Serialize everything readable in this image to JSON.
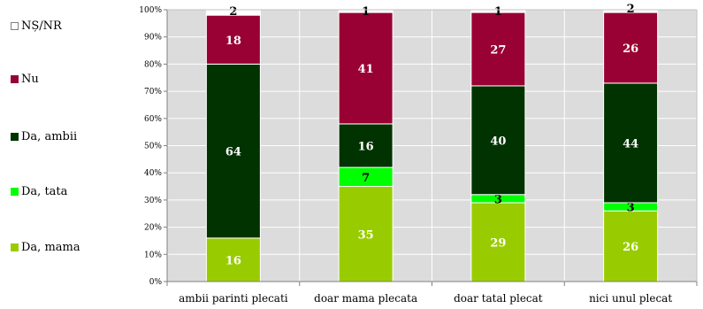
{
  "chart_data": {
    "type": "bar",
    "stacked": true,
    "percent_axis": true,
    "title": "",
    "xlabel": "",
    "ylabel": "",
    "ylim": [
      0,
      100
    ],
    "y_ticks": [
      "0%",
      "10%",
      "20%",
      "30%",
      "40%",
      "50%",
      "60%",
      "70%",
      "80%",
      "90%",
      "100%"
    ],
    "categories": [
      "ambii parinti plecati",
      "doar mama plecata",
      "doar tatal plecat",
      "nici unul plecat"
    ],
    "series": [
      {
        "name": "Da, mama",
        "color": "#99cc00",
        "values": [
          16,
          35,
          29,
          26
        ]
      },
      {
        "name": "Da, tata",
        "color": "#00ff00",
        "values": [
          0,
          7,
          3,
          3
        ]
      },
      {
        "name": "Da, ambii",
        "color": "#003300",
        "values": [
          64,
          16,
          40,
          44
        ]
      },
      {
        "name": "Nu",
        "color": "#990033",
        "values": [
          18,
          41,
          27,
          26
        ]
      },
      {
        "name": "NȘ/NR",
        "color": "#ffffff",
        "values": [
          2,
          1,
          1,
          2
        ]
      }
    ],
    "legend_order": [
      "NȘ/NR",
      "Nu",
      "Da, ambii",
      "Da, tata",
      "Da, mama"
    ],
    "legend_position": "left",
    "grid": true,
    "plot_background": "#dcdcdc"
  }
}
